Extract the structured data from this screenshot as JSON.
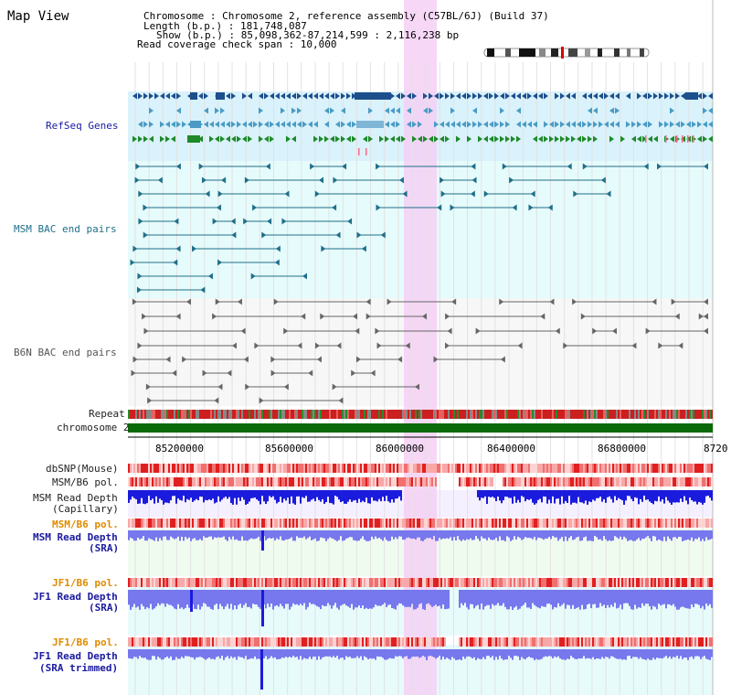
{
  "view_title": "Map View",
  "info": {
    "chromosome": "Chromosome   : Chromosome 2, reference assembly (C57BL/6J) (Build 37)",
    "length": "Length (b.p.) : 181,748,087",
    "show": "Show (b.p.) : 85,098,362-87,214,599 : 2,116,238 bp",
    "read_span": "Read coverage check span : 10,000"
  },
  "tracks": {
    "refseq": "RefSeq Genes",
    "msm_bac": "MSM BAC end pairs",
    "b6n_bac": "B6N BAC end pairs",
    "repeat": "Repeat",
    "chromosome": "chromosome 2",
    "dbsnp": "dbSNP(Mouse)",
    "msm_pol1": "MSM/B6 pol.",
    "msm_depth_cap1": "MSM Read Depth",
    "msm_depth_cap2": "(Capillary)",
    "msm_pol2": "MSM/B6 pol.",
    "msm_depth_sra1": "MSM Read Depth",
    "msm_depth_sra2": "(SRA)",
    "jf1_pol1": "JF1/B6 pol.",
    "jf1_depth1": "JF1 Read Depth",
    "jf1_depth2": "(SRA)",
    "jf1_pol2": "JF1/B6 pol.",
    "jf1_trim1": "JF1 Read Depth",
    "jf1_trim2": "(SRA trimmed)"
  },
  "ruler": {
    "ticks": [
      "85200000",
      "85600000",
      "86000000",
      "86400000",
      "86800000",
      "8720"
    ]
  },
  "colors": {
    "highlight": "#f5d0f5",
    "refseq_bg": "#d9f2fb",
    "gene_dark": "#1d4f8c",
    "gene_mid": "#4a9bc4",
    "gene_green": "#1e8a2a",
    "bac_teal": "#1f6f8a",
    "bac_gray": "#666666",
    "chrom_green": "#0a6a0a",
    "depth_blue": "#1b1bdd",
    "depth_light": "#7777ee"
  }
}
